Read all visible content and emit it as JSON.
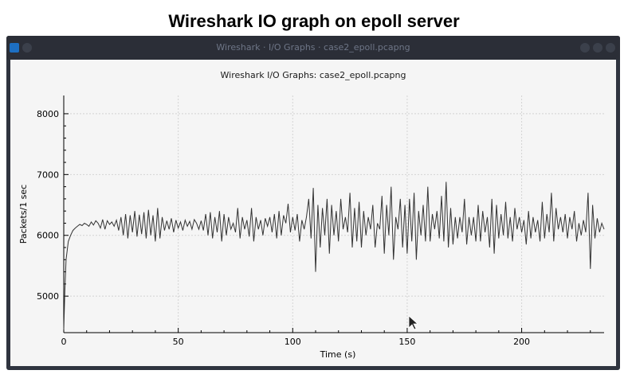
{
  "slide": {
    "title": "Wireshark IO graph on epoll server"
  },
  "window": {
    "title": "Wireshark · I/O Graphs · case2_epoll.pcapng",
    "colors": {
      "frame": "#2f343f",
      "titlebar_text": "#6e7687",
      "app_icon": "#1d6fc2"
    },
    "icons": [
      "app-icon",
      "minimize-icon",
      "maximize-icon",
      "close-icon",
      "mouse-cursor-icon"
    ]
  },
  "chart_data": {
    "type": "line",
    "title": "Wireshark I/O Graphs: case2_epoll.pcapng",
    "xlabel": "Time (s)",
    "ylabel": "Packets/1 sec",
    "xlim": [
      0,
      236
    ],
    "ylim": [
      4400,
      8300
    ],
    "xticks": [
      0,
      50,
      100,
      150,
      200
    ],
    "yticks": [
      5000,
      6000,
      7000,
      8000
    ],
    "grid": true,
    "line_color": "#333333",
    "series": [
      {
        "values": [
          [
            0,
            4450
          ],
          [
            0.5,
            5100
          ],
          [
            1,
            5600
          ],
          [
            2,
            5900
          ],
          [
            3,
            6000
          ],
          [
            4,
            6080
          ],
          [
            5,
            6120
          ],
          [
            6,
            6150
          ],
          [
            7,
            6180
          ],
          [
            8,
            6160
          ],
          [
            9,
            6200
          ],
          [
            10,
            6180
          ],
          [
            11,
            6150
          ],
          [
            12,
            6220
          ],
          [
            13,
            6170
          ],
          [
            14,
            6240
          ],
          [
            15,
            6200
          ],
          [
            16,
            6120
          ],
          [
            17,
            6260
          ],
          [
            18,
            6100
          ],
          [
            19,
            6240
          ],
          [
            20,
            6180
          ],
          [
            21,
            6220
          ],
          [
            22,
            6150
          ],
          [
            23,
            6250
          ],
          [
            24,
            6080
          ],
          [
            25,
            6300
          ],
          [
            26,
            6000
          ],
          [
            27,
            6350
          ],
          [
            28,
            5950
          ],
          [
            29,
            6330
          ],
          [
            30,
            6050
          ],
          [
            31,
            6400
          ],
          [
            32,
            5980
          ],
          [
            33,
            6340
          ],
          [
            34,
            6020
          ],
          [
            35,
            6380
          ],
          [
            36,
            5950
          ],
          [
            37,
            6420
          ],
          [
            38,
            6000
          ],
          [
            39,
            6330
          ],
          [
            40,
            5900
          ],
          [
            41,
            6450
          ],
          [
            42,
            5950
          ],
          [
            43,
            6300
          ],
          [
            44,
            6080
          ],
          [
            45,
            6240
          ],
          [
            46,
            6100
          ],
          [
            47,
            6280
          ],
          [
            48,
            6050
          ],
          [
            49,
            6250
          ],
          [
            50,
            6120
          ],
          [
            51,
            6220
          ],
          [
            52,
            6080
          ],
          [
            53,
            6250
          ],
          [
            54,
            6150
          ],
          [
            55,
            6230
          ],
          [
            56,
            6100
          ],
          [
            57,
            6260
          ],
          [
            58,
            6200
          ],
          [
            59,
            6100
          ],
          [
            60,
            6240
          ],
          [
            61,
            6080
          ],
          [
            62,
            6350
          ],
          [
            63,
            6000
          ],
          [
            64,
            6380
          ],
          [
            65,
            5950
          ],
          [
            66,
            6300
          ],
          [
            67,
            6050
          ],
          [
            68,
            6400
          ],
          [
            69,
            5900
          ],
          [
            70,
            6350
          ],
          [
            71,
            6000
          ],
          [
            72,
            6300
          ],
          [
            73,
            6100
          ],
          [
            74,
            6200
          ],
          [
            75,
            6050
          ],
          [
            76,
            6450
          ],
          [
            77,
            5950
          ],
          [
            78,
            6300
          ],
          [
            79,
            6100
          ],
          [
            80,
            6250
          ],
          [
            81,
            5980
          ],
          [
            82,
            6450
          ],
          [
            83,
            5900
          ],
          [
            84,
            6300
          ],
          [
            85,
            6100
          ],
          [
            86,
            6250
          ],
          [
            87,
            6000
          ],
          [
            88,
            6280
          ],
          [
            89,
            6150
          ],
          [
            90,
            6300
          ],
          [
            91,
            6050
          ],
          [
            92,
            6350
          ],
          [
            93,
            5950
          ],
          [
            94,
            6400
          ],
          [
            95,
            6000
          ],
          [
            96,
            6330
          ],
          [
            97,
            6200
          ],
          [
            98,
            6520
          ],
          [
            99,
            6050
          ],
          [
            100,
            6300
          ],
          [
            101,
            6080
          ],
          [
            102,
            6350
          ],
          [
            103,
            5900
          ],
          [
            104,
            6250
          ],
          [
            105,
            6100
          ],
          [
            106,
            6300
          ],
          [
            107,
            6600
          ],
          [
            108,
            5950
          ],
          [
            109,
            6780
          ],
          [
            110,
            5400
          ],
          [
            111,
            6500
          ],
          [
            112,
            5800
          ],
          [
            113,
            6450
          ],
          [
            114,
            6000
          ],
          [
            115,
            6600
          ],
          [
            116,
            5700
          ],
          [
            117,
            6500
          ],
          [
            118,
            6000
          ],
          [
            119,
            6400
          ],
          [
            120,
            5900
          ],
          [
            121,
            6600
          ],
          [
            122,
            6100
          ],
          [
            123,
            6300
          ],
          [
            124,
            6050
          ],
          [
            125,
            6700
          ],
          [
            126,
            5800
          ],
          [
            127,
            6450
          ],
          [
            128,
            5900
          ],
          [
            129,
            6550
          ],
          [
            130,
            5800
          ],
          [
            131,
            6400
          ],
          [
            132,
            6000
          ],
          [
            133,
            6300
          ],
          [
            134,
            6100
          ],
          [
            135,
            6500
          ],
          [
            136,
            5800
          ],
          [
            137,
            6200
          ],
          [
            138,
            6100
          ],
          [
            139,
            6650
          ],
          [
            140,
            5700
          ],
          [
            141,
            6500
          ],
          [
            142,
            6000
          ],
          [
            143,
            6800
          ],
          [
            144,
            5600
          ],
          [
            145,
            6300
          ],
          [
            146,
            6100
          ],
          [
            147,
            6600
          ],
          [
            148,
            5800
          ],
          [
            149,
            6500
          ],
          [
            150,
            5700
          ],
          [
            151,
            6600
          ],
          [
            152,
            5900
          ],
          [
            153,
            6700
          ],
          [
            154,
            5600
          ],
          [
            155,
            6400
          ],
          [
            156,
            6000
          ],
          [
            157,
            6500
          ],
          [
            158,
            5900
          ],
          [
            159,
            6800
          ],
          [
            160,
            5900
          ],
          [
            161,
            6350
          ],
          [
            162,
            6100
          ],
          [
            163,
            6400
          ],
          [
            164,
            5950
          ],
          [
            165,
            6650
          ],
          [
            166,
            5900
          ],
          [
            167,
            6880
          ],
          [
            168,
            5800
          ],
          [
            169,
            6450
          ],
          [
            170,
            5850
          ],
          [
            171,
            6300
          ],
          [
            172,
            5950
          ],
          [
            173,
            6300
          ],
          [
            174,
            6050
          ],
          [
            175,
            6600
          ],
          [
            176,
            5850
          ],
          [
            177,
            6300
          ],
          [
            178,
            6000
          ],
          [
            179,
            6300
          ],
          [
            180,
            5900
          ],
          [
            181,
            6500
          ],
          [
            182,
            5900
          ],
          [
            183,
            6400
          ],
          [
            184,
            6050
          ],
          [
            185,
            6300
          ],
          [
            186,
            5800
          ],
          [
            187,
            6600
          ],
          [
            188,
            5700
          ],
          [
            189,
            6500
          ],
          [
            190,
            5950
          ],
          [
            191,
            6350
          ],
          [
            192,
            6000
          ],
          [
            193,
            6550
          ],
          [
            194,
            5950
          ],
          [
            195,
            6300
          ],
          [
            196,
            5900
          ],
          [
            197,
            6450
          ],
          [
            198,
            6100
          ],
          [
            199,
            6300
          ],
          [
            200,
            6050
          ],
          [
            201,
            6250
          ],
          [
            202,
            5850
          ],
          [
            203,
            6400
          ],
          [
            204,
            5950
          ],
          [
            205,
            6300
          ],
          [
            206,
            6050
          ],
          [
            207,
            6250
          ],
          [
            208,
            5900
          ],
          [
            209,
            6550
          ],
          [
            210,
            5950
          ],
          [
            211,
            6350
          ],
          [
            212,
            6050
          ],
          [
            213,
            6700
          ],
          [
            214,
            5900
          ],
          [
            215,
            6450
          ],
          [
            216,
            6100
          ],
          [
            217,
            6300
          ],
          [
            218,
            6050
          ],
          [
            219,
            6350
          ],
          [
            220,
            5950
          ],
          [
            221,
            6300
          ],
          [
            222,
            6100
          ],
          [
            223,
            6400
          ],
          [
            224,
            5900
          ],
          [
            225,
            6200
          ],
          [
            226,
            6000
          ],
          [
            227,
            6250
          ],
          [
            228,
            6050
          ],
          [
            229,
            6700
          ],
          [
            230,
            5450
          ],
          [
            231,
            6500
          ],
          [
            232,
            5950
          ],
          [
            233,
            6280
          ],
          [
            234,
            6050
          ],
          [
            235,
            6200
          ],
          [
            236,
            6100
          ]
        ]
      }
    ]
  }
}
